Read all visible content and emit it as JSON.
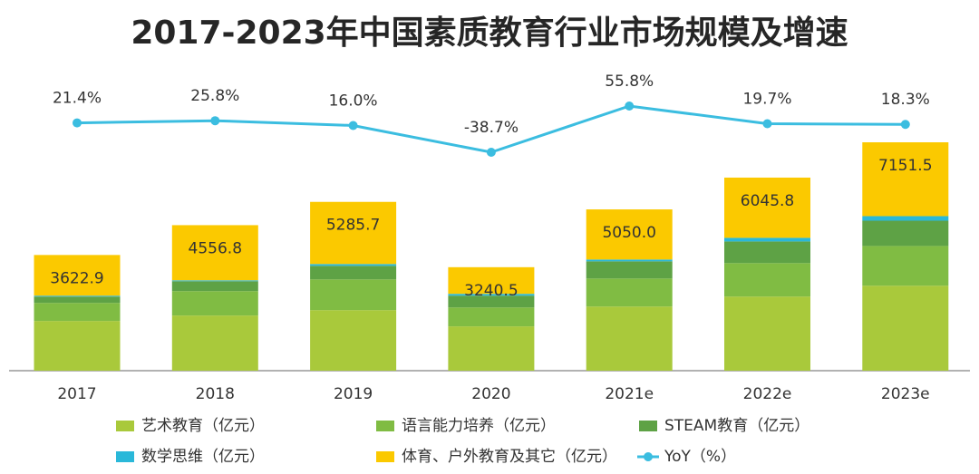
{
  "chart_data": {
    "type": "bar",
    "stacked": true,
    "title": "2017-2023年中国素质教育行业市场规模及增速",
    "categories": [
      "2017",
      "2018",
      "2019",
      "2020",
      "2021e",
      "2022e",
      "2023e"
    ],
    "series": [
      {
        "name": "艺术教育（亿元）",
        "color": "#a9c93b",
        "values": [
          1557,
          1727,
          1896,
          1387,
          2009,
          2321,
          2660
        ]
      },
      {
        "name": "语言能力培养（亿元）",
        "color": "#80bc43",
        "values": [
          566,
          764,
          962,
          594,
          877,
          1047,
          1245
        ]
      },
      {
        "name": "STEAM教育（亿元）",
        "color": "#5ea245",
        "values": [
          198,
          311,
          425,
          368,
          538,
          679,
          792
        ]
      },
      {
        "name": "数学思维（亿元）",
        "color": "#2ab8d9",
        "values": [
          28,
          28,
          57,
          57,
          57,
          113,
          142
        ]
      },
      {
        "name": "体育、户外教育及其它（亿元）",
        "color": "#fbc900",
        "values": [
          1273.9,
          1726.8,
          1945.7,
          834.5,
          1569.0,
          1885.8,
          2312.5
        ]
      },
      {
        "name": "YoY（%）",
        "type": "line",
        "color": "#3bbde0",
        "values": [
          21.4,
          25.8,
          16.0,
          -38.7,
          55.8,
          19.7,
          18.3
        ],
        "value_labels": [
          "21.4%",
          "25.8%",
          "16.0%",
          "-38.7%",
          "55.8%",
          "19.7%",
          "18.3%"
        ]
      }
    ],
    "totals": [
      3622.9,
      4556.8,
      5285.7,
      3240.5,
      5050.0,
      6045.8,
      7151.5
    ],
    "total_labels": [
      "3622.9",
      "4556.8",
      "5285.7",
      "3240.5",
      "5050.0",
      "6045.8",
      "7151.5"
    ]
  }
}
